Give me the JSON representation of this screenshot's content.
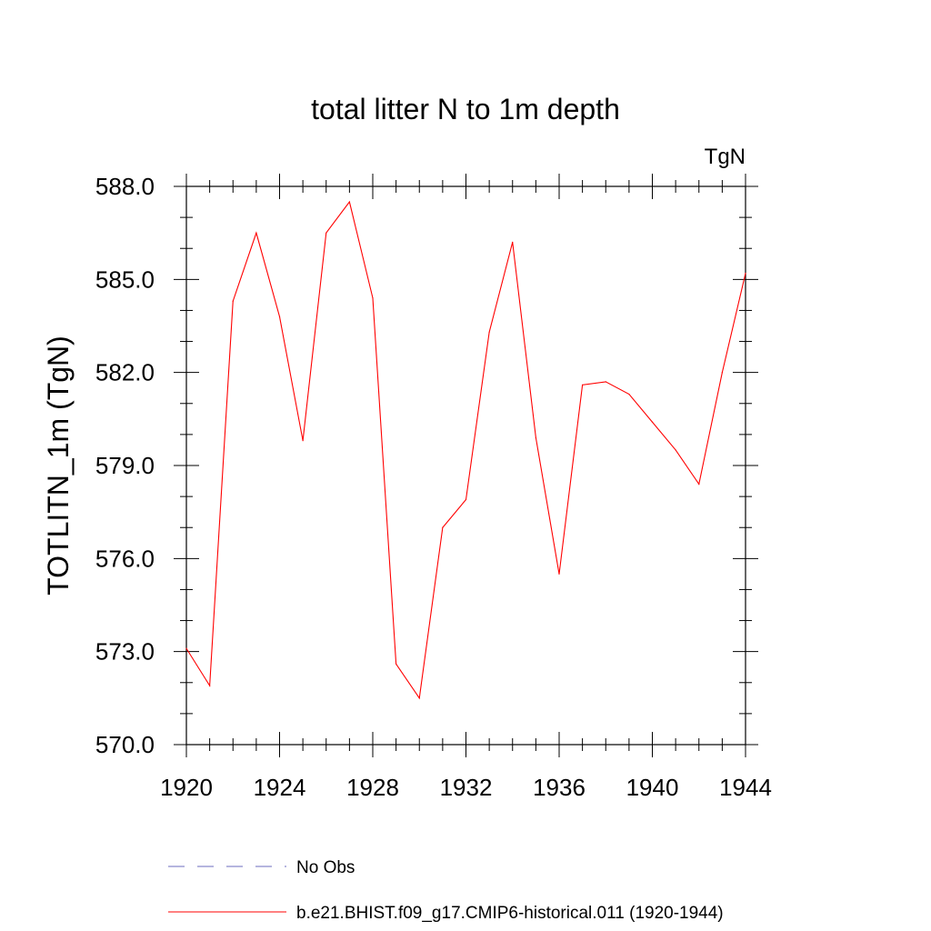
{
  "chart_data": {
    "type": "line",
    "title": "total litter N to 1m depth",
    "units_label": "TgN",
    "ylabel": "TOTLITN_1m  (TgN)",
    "xlabel": "",
    "xlim": [
      1920,
      1944
    ],
    "ylim": [
      570.0,
      588.0
    ],
    "x_ticks": [
      1920,
      1924,
      1928,
      1932,
      1936,
      1940,
      1944
    ],
    "x_tick_labels": [
      "1920",
      "1924",
      "1928",
      "1932",
      "1936",
      "1940",
      "1944"
    ],
    "y_ticks": [
      570.0,
      573.0,
      576.0,
      579.0,
      582.0,
      585.0,
      588.0
    ],
    "y_tick_labels": [
      "570.0",
      "573.0",
      "576.0",
      "579.0",
      "582.0",
      "585.0",
      "588.0"
    ],
    "x_minor_step": 1,
    "y_minor_step": 1,
    "grid": false,
    "legend_position": "bottom",
    "series": [
      {
        "name": "No Obs",
        "color": "#6b6bbf",
        "dash": "dashed",
        "x": [],
        "y": []
      },
      {
        "name": "b.e21.BHIST.f09_g17.CMIP6-historical.011 (1920-1944)",
        "color": "#ff0000",
        "dash": "solid",
        "x": [
          1920,
          1921,
          1922,
          1923,
          1924,
          1925,
          1926,
          1927,
          1928,
          1929,
          1930,
          1931,
          1932,
          1933,
          1934,
          1935,
          1936,
          1937,
          1938,
          1939,
          1940,
          1941,
          1942,
          1943,
          1944
        ],
        "y": [
          573.1,
          571.9,
          584.3,
          586.5,
          583.8,
          579.8,
          586.5,
          587.5,
          584.4,
          572.6,
          571.5,
          577.0,
          577.9,
          583.3,
          586.2,
          579.9,
          575.5,
          581.6,
          581.7,
          581.3,
          580.4,
          579.5,
          578.4,
          582.0,
          585.2
        ]
      }
    ]
  }
}
